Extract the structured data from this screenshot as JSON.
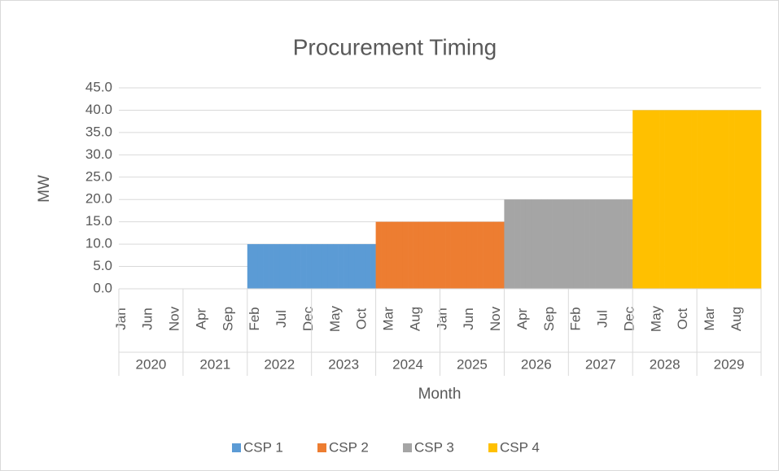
{
  "chart_data": {
    "type": "bar",
    "stacked": true,
    "title": "Procurement Timing",
    "x_label": "Month",
    "y_label": "MW",
    "categories": [
      "Jan",
      null,
      null,
      null,
      null,
      "Jun",
      null,
      null,
      null,
      null,
      "Nov",
      null,
      null,
      null,
      null,
      "Apr",
      null,
      null,
      null,
      null,
      "Sep",
      null,
      null,
      null,
      null,
      "Feb",
      null,
      null,
      null,
      null,
      "Jul",
      null,
      null,
      null,
      null,
      "Dec",
      null,
      null,
      null,
      null,
      "May",
      null,
      null,
      null,
      null,
      "Oct",
      null,
      null,
      null,
      null,
      "Mar",
      null,
      null,
      null,
      null,
      "Aug",
      null,
      null,
      null,
      null,
      "Jan",
      null,
      null,
      null,
      null,
      "Jun",
      null,
      null,
      null,
      null,
      "Nov",
      null,
      null,
      null,
      null,
      "Apr",
      null,
      null,
      null,
      null,
      "Sep",
      null,
      null,
      null,
      null,
      "Feb",
      null,
      null,
      null,
      null,
      "Jul",
      null,
      null,
      null,
      null,
      "Dec",
      null,
      null,
      null,
      null,
      "May",
      null,
      null,
      null,
      null,
      "Oct",
      null,
      null,
      null,
      null,
      "Mar",
      null,
      null,
      null,
      null,
      "Aug",
      null,
      null,
      null,
      null
    ],
    "years": [
      "2020",
      "2021",
      "2022",
      "2023",
      "2024",
      "2025",
      "2026",
      "2027",
      "2028",
      "2029"
    ],
    "series": [
      {
        "name": "CSP 1",
        "color": "#5b9bd5",
        "values": [
          null,
          null,
          null,
          null,
          null,
          null,
          null,
          null,
          null,
          null,
          null,
          null,
          null,
          null,
          null,
          null,
          null,
          null,
          null,
          null,
          null,
          null,
          null,
          null,
          10,
          10,
          10,
          10,
          10,
          10,
          10,
          10,
          10,
          10,
          10,
          10,
          10,
          10,
          10,
          10,
          10,
          10,
          10,
          10,
          10,
          10,
          10,
          10,
          null,
          null,
          null,
          null,
          null,
          null,
          null,
          null,
          null,
          null,
          null,
          null,
          null,
          null,
          null,
          null,
          null,
          null,
          null,
          null,
          null,
          null,
          null,
          null,
          null,
          null,
          null,
          null,
          null,
          null,
          null,
          null,
          null,
          null,
          null,
          null,
          null,
          null,
          null,
          null,
          null,
          null,
          null,
          null,
          null,
          null,
          null,
          null,
          null,
          null,
          null,
          null,
          null,
          null,
          null,
          null,
          null,
          null,
          null,
          null,
          null,
          null,
          null,
          null,
          null,
          null,
          null,
          null,
          null,
          null,
          null,
          null
        ]
      },
      {
        "name": "CSP 2",
        "color": "#ed7d31",
        "values": [
          null,
          null,
          null,
          null,
          null,
          null,
          null,
          null,
          null,
          null,
          null,
          null,
          null,
          null,
          null,
          null,
          null,
          null,
          null,
          null,
          null,
          null,
          null,
          null,
          null,
          null,
          null,
          null,
          null,
          null,
          null,
          null,
          null,
          null,
          null,
          null,
          null,
          null,
          null,
          null,
          null,
          null,
          null,
          null,
          null,
          null,
          null,
          null,
          15,
          15,
          15,
          15,
          15,
          15,
          15,
          15,
          15,
          15,
          15,
          15,
          15,
          15,
          15,
          15,
          15,
          15,
          15,
          15,
          15,
          15,
          15,
          15,
          null,
          null,
          null,
          null,
          null,
          null,
          null,
          null,
          null,
          null,
          null,
          null,
          null,
          null,
          null,
          null,
          null,
          null,
          null,
          null,
          null,
          null,
          null,
          null,
          null,
          null,
          null,
          null,
          null,
          null,
          null,
          null,
          null,
          null,
          null,
          null,
          null,
          null,
          null,
          null,
          null,
          null,
          null,
          null,
          null,
          null,
          null,
          null
        ]
      },
      {
        "name": "CSP 3",
        "color": "#a5a5a5",
        "values": [
          null,
          null,
          null,
          null,
          null,
          null,
          null,
          null,
          null,
          null,
          null,
          null,
          null,
          null,
          null,
          null,
          null,
          null,
          null,
          null,
          null,
          null,
          null,
          null,
          null,
          null,
          null,
          null,
          null,
          null,
          null,
          null,
          null,
          null,
          null,
          null,
          null,
          null,
          null,
          null,
          null,
          null,
          null,
          null,
          null,
          null,
          null,
          null,
          null,
          null,
          null,
          null,
          null,
          null,
          null,
          null,
          null,
          null,
          null,
          null,
          null,
          null,
          null,
          null,
          null,
          null,
          null,
          null,
          null,
          null,
          null,
          null,
          20,
          20,
          20,
          20,
          20,
          20,
          20,
          20,
          20,
          20,
          20,
          20,
          20,
          20,
          20,
          20,
          20,
          20,
          20,
          20,
          20,
          20,
          20,
          20,
          null,
          null,
          null,
          null,
          null,
          null,
          null,
          null,
          null,
          null,
          null,
          null,
          null,
          null,
          null,
          null,
          null,
          null,
          null,
          null,
          null,
          null,
          null,
          null
        ]
      },
      {
        "name": "CSP 4",
        "color": "#ffc000",
        "values": [
          null,
          null,
          null,
          null,
          null,
          null,
          null,
          null,
          null,
          null,
          null,
          null,
          null,
          null,
          null,
          null,
          null,
          null,
          null,
          null,
          null,
          null,
          null,
          null,
          null,
          null,
          null,
          null,
          null,
          null,
          null,
          null,
          null,
          null,
          null,
          null,
          null,
          null,
          null,
          null,
          null,
          null,
          null,
          null,
          null,
          null,
          null,
          null,
          null,
          null,
          null,
          null,
          null,
          null,
          null,
          null,
          null,
          null,
          null,
          null,
          null,
          null,
          null,
          null,
          null,
          null,
          null,
          null,
          null,
          null,
          null,
          null,
          null,
          null,
          null,
          null,
          null,
          null,
          null,
          null,
          null,
          null,
          null,
          null,
          null,
          null,
          null,
          null,
          null,
          null,
          null,
          null,
          null,
          null,
          null,
          null,
          40,
          40,
          40,
          40,
          40,
          40,
          40,
          40,
          40,
          40,
          40,
          40,
          40,
          40,
          40,
          40,
          40,
          40,
          40,
          40,
          40,
          40,
          40,
          40
        ]
      }
    ],
    "ylim": [
      0,
      45
    ],
    "yticks": [
      {
        "value": 0,
        "label": "0.0"
      },
      {
        "value": 5,
        "label": "5.0"
      },
      {
        "value": 10,
        "label": "10.0"
      },
      {
        "value": 15,
        "label": "15.0"
      },
      {
        "value": 20,
        "label": "20.0"
      },
      {
        "value": 25,
        "label": "25.0"
      },
      {
        "value": 30,
        "label": "30.0"
      },
      {
        "value": 35,
        "label": "35.0"
      },
      {
        "value": 40,
        "label": "40.0"
      },
      {
        "value": 45,
        "label": "45.0"
      }
    ],
    "grid": true,
    "legend": "bottom"
  }
}
